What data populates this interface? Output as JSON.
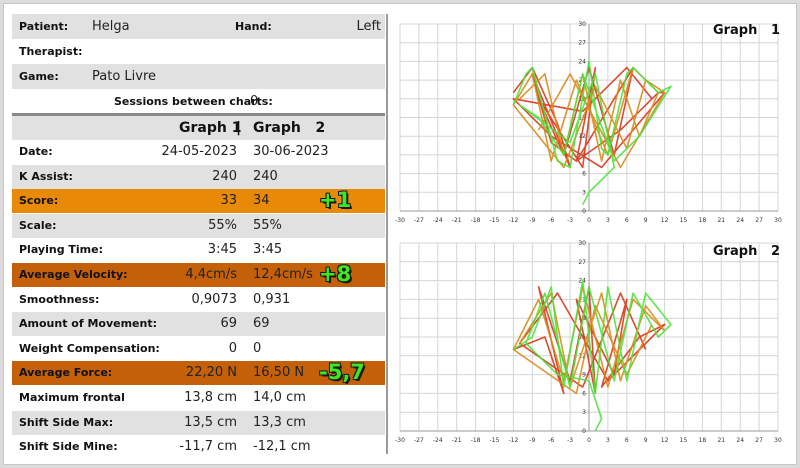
{
  "header": {
    "patient_label": "Patient:",
    "patient_value": "Helga",
    "hand_label": "Hand:",
    "hand_value": "Left",
    "therapist_label": "Therapist:",
    "therapist_value": "",
    "game_label": "Game:",
    "game_value": "Pato Livre",
    "sessions_label": "Sessions between charts:",
    "sessions_value": "0"
  },
  "table": {
    "col1_header": "Graph 1",
    "col_sep": "|",
    "col2_header": "Graph   2",
    "rows": [
      {
        "label": "Date:",
        "v1": "24-05-2023",
        "v2": "30-06-2023",
        "diff": "",
        "style": "white"
      },
      {
        "label": "K Assist:",
        "v1": "240",
        "v2": "240",
        "diff": "",
        "style": "grey"
      },
      {
        "label": "Score:",
        "v1": "33",
        "v2": "34",
        "diff": "+1",
        "style": "orange"
      },
      {
        "label": "Scale:",
        "v1": "55%",
        "v2": "55%",
        "diff": "",
        "style": "grey"
      },
      {
        "label": "Playing Time:",
        "v1": "3:45",
        "v2": "3:45",
        "diff": "",
        "style": "white"
      },
      {
        "label": "Average Velocity:",
        "v1": "4,4cm/s",
        "v2": "12,4cm/s",
        "diff": "+8",
        "style": "brown"
      },
      {
        "label": "Smoothness:",
        "v1": "0,9073",
        "v2": "0,931",
        "diff": "",
        "style": "white"
      },
      {
        "label": "Amount of Movement:",
        "v1": "69",
        "v2": "69",
        "diff": "",
        "style": "grey"
      },
      {
        "label": "Weight Compensation:",
        "v1": "0",
        "v2": "0",
        "diff": "",
        "style": "white"
      },
      {
        "label": "Average Force:",
        "v1": "22,20 N",
        "v2": "16,50 N",
        "diff": "-5,7",
        "style": "brown"
      },
      {
        "label": "Maximum frontal",
        "v1": "13,8 cm",
        "v2": "14,0 cm",
        "diff": "",
        "style": "white"
      },
      {
        "label": "Shift Side Max:",
        "v1": "13,5 cm",
        "v2": "13,3 cm",
        "diff": "",
        "style": "grey"
      },
      {
        "label": "Shift Side Mine:",
        "v1": "-11,7 cm",
        "v2": "-12,1 cm",
        "diff": "",
        "style": "white"
      }
    ]
  },
  "colors": {
    "orange_row": "#e88a08",
    "brown_row": "#c4600a",
    "grey_row": "#e1e1e1",
    "diff_text": "#3fe626",
    "trace_red": "#d8361b",
    "trace_orange": "#d9891c",
    "trace_green": "#4ee23a"
  },
  "chart_data": [
    {
      "type": "line",
      "title": "Graph   1",
      "x_ticks": [
        -30,
        -27,
        -24,
        -21,
        -18,
        -15,
        -12,
        -9,
        -6,
        -3,
        0,
        3,
        6,
        9,
        12,
        15,
        18,
        21,
        24,
        27,
        30
      ],
      "y_ticks": [
        0,
        3,
        6,
        9,
        12,
        15,
        18,
        21,
        24,
        27,
        30
      ],
      "xlim": [
        -30,
        30
      ],
      "ylim": [
        0,
        30
      ],
      "grid": true,
      "series": [
        {
          "color": "red",
          "x": [
            -12,
            -9,
            -5,
            -3,
            -9,
            -6,
            -2,
            1,
            -1,
            -8,
            -4,
            0,
            4,
            7,
            -2,
            5,
            11,
            12,
            2,
            -6,
            -12,
            -1,
            6,
            10
          ],
          "y": [
            19,
            23,
            14,
            7,
            22,
            11,
            8,
            23,
            7,
            18,
            9,
            23,
            9,
            23,
            8,
            13,
            19,
            19,
            7,
            12,
            18,
            16,
            23,
            18
          ]
        },
        {
          "color": "orange",
          "x": [
            -11,
            -7,
            -4,
            -1,
            2,
            5,
            8,
            11,
            7,
            3,
            -2,
            -6,
            -9,
            -12,
            -4,
            1,
            6,
            9,
            12,
            5,
            -3,
            -8
          ],
          "y": [
            18,
            22,
            9,
            22,
            8,
            21,
            12,
            19,
            23,
            9,
            21,
            8,
            22,
            17,
            7,
            20,
            10,
            21,
            19,
            7,
            22,
            13
          ]
        },
        {
          "color": "green",
          "x": [
            -12,
            -10,
            -9,
            -5,
            -3,
            0,
            2,
            3,
            6,
            7,
            11,
            13,
            8,
            4,
            -1,
            -4,
            -8,
            -11,
            -3,
            1,
            4,
            0,
            -1
          ],
          "y": [
            17,
            22,
            23,
            8,
            7,
            24,
            10,
            9,
            22,
            23,
            19,
            20,
            12,
            8,
            22,
            9,
            15,
            17,
            11,
            22,
            7,
            3,
            1
          ]
        }
      ]
    },
    {
      "type": "line",
      "title": "Graph   2",
      "x_ticks": [
        -30,
        -27,
        -24,
        -21,
        -18,
        -15,
        -12,
        -9,
        -6,
        -3,
        0,
        3,
        6,
        9,
        12,
        15,
        18,
        21,
        24,
        27,
        30
      ],
      "y_ticks": [
        0,
        3,
        6,
        9,
        12,
        15,
        18,
        21,
        24,
        27,
        30
      ],
      "xlim": [
        -30,
        30
      ],
      "ylim": [
        0,
        30
      ],
      "grid": true,
      "series": [
        {
          "color": "red",
          "x": [
            -12,
            -7,
            -4,
            -8,
            -3,
            0,
            1,
            -2,
            4,
            6,
            2,
            8,
            12,
            3,
            -5,
            -11,
            -1,
            5,
            9
          ],
          "y": [
            13,
            15,
            6,
            23,
            8,
            23,
            6,
            21,
            9,
            21,
            7,
            15,
            17,
            8,
            22,
            14,
            7,
            22,
            13
          ]
        },
        {
          "color": "orange",
          "x": [
            -11,
            -6,
            -3,
            2,
            5,
            9,
            12,
            7,
            3,
            -1,
            -4,
            -8,
            -12,
            -2,
            1,
            6,
            10
          ],
          "y": [
            14,
            22,
            7,
            22,
            8,
            20,
            16,
            21,
            7,
            23,
            8,
            21,
            13,
            6,
            20,
            9,
            17
          ]
        },
        {
          "color": "green",
          "x": [
            -12,
            -9,
            -6,
            -4,
            -1,
            1,
            3,
            6,
            9,
            13,
            11,
            7,
            4,
            0,
            -3,
            -7,
            -10,
            -5,
            0,
            2,
            1
          ],
          "y": [
            13,
            15,
            23,
            7,
            24,
            6,
            23,
            8,
            22,
            17,
            15,
            22,
            8,
            23,
            7,
            22,
            14,
            9,
            8,
            2,
            0
          ]
        }
      ]
    }
  ]
}
